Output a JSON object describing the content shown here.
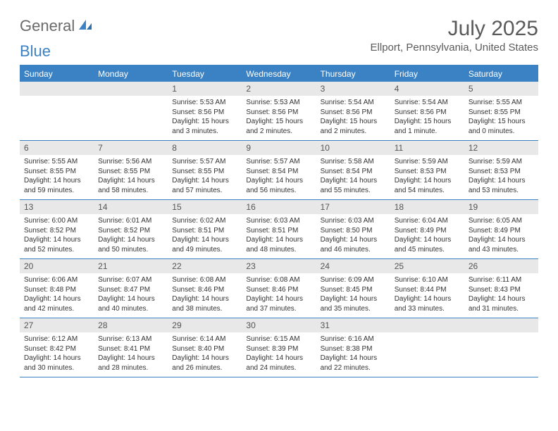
{
  "brand": {
    "part1": "General",
    "part2": "Blue"
  },
  "title": "July 2025",
  "location": "Ellport, Pennsylvania, United States",
  "colors": {
    "accent": "#3b82c4",
    "header_bg": "#3b82c4",
    "header_fg": "#ffffff",
    "daynum_bg": "#e8e8e8",
    "text": "#333333",
    "muted": "#5a5a5a"
  },
  "weekdays": [
    "Sunday",
    "Monday",
    "Tuesday",
    "Wednesday",
    "Thursday",
    "Friday",
    "Saturday"
  ],
  "weeks": [
    [
      null,
      null,
      {
        "n": "1",
        "sr": "5:53 AM",
        "ss": "8:56 PM",
        "dl": "15 hours and 3 minutes."
      },
      {
        "n": "2",
        "sr": "5:53 AM",
        "ss": "8:56 PM",
        "dl": "15 hours and 2 minutes."
      },
      {
        "n": "3",
        "sr": "5:54 AM",
        "ss": "8:56 PM",
        "dl": "15 hours and 2 minutes."
      },
      {
        "n": "4",
        "sr": "5:54 AM",
        "ss": "8:56 PM",
        "dl": "15 hours and 1 minute."
      },
      {
        "n": "5",
        "sr": "5:55 AM",
        "ss": "8:55 PM",
        "dl": "15 hours and 0 minutes."
      }
    ],
    [
      {
        "n": "6",
        "sr": "5:55 AM",
        "ss": "8:55 PM",
        "dl": "14 hours and 59 minutes."
      },
      {
        "n": "7",
        "sr": "5:56 AM",
        "ss": "8:55 PM",
        "dl": "14 hours and 58 minutes."
      },
      {
        "n": "8",
        "sr": "5:57 AM",
        "ss": "8:55 PM",
        "dl": "14 hours and 57 minutes."
      },
      {
        "n": "9",
        "sr": "5:57 AM",
        "ss": "8:54 PM",
        "dl": "14 hours and 56 minutes."
      },
      {
        "n": "10",
        "sr": "5:58 AM",
        "ss": "8:54 PM",
        "dl": "14 hours and 55 minutes."
      },
      {
        "n": "11",
        "sr": "5:59 AM",
        "ss": "8:53 PM",
        "dl": "14 hours and 54 minutes."
      },
      {
        "n": "12",
        "sr": "5:59 AM",
        "ss": "8:53 PM",
        "dl": "14 hours and 53 minutes."
      }
    ],
    [
      {
        "n": "13",
        "sr": "6:00 AM",
        "ss": "8:52 PM",
        "dl": "14 hours and 52 minutes."
      },
      {
        "n": "14",
        "sr": "6:01 AM",
        "ss": "8:52 PM",
        "dl": "14 hours and 50 minutes."
      },
      {
        "n": "15",
        "sr": "6:02 AM",
        "ss": "8:51 PM",
        "dl": "14 hours and 49 minutes."
      },
      {
        "n": "16",
        "sr": "6:03 AM",
        "ss": "8:51 PM",
        "dl": "14 hours and 48 minutes."
      },
      {
        "n": "17",
        "sr": "6:03 AM",
        "ss": "8:50 PM",
        "dl": "14 hours and 46 minutes."
      },
      {
        "n": "18",
        "sr": "6:04 AM",
        "ss": "8:49 PM",
        "dl": "14 hours and 45 minutes."
      },
      {
        "n": "19",
        "sr": "6:05 AM",
        "ss": "8:49 PM",
        "dl": "14 hours and 43 minutes."
      }
    ],
    [
      {
        "n": "20",
        "sr": "6:06 AM",
        "ss": "8:48 PM",
        "dl": "14 hours and 42 minutes."
      },
      {
        "n": "21",
        "sr": "6:07 AM",
        "ss": "8:47 PM",
        "dl": "14 hours and 40 minutes."
      },
      {
        "n": "22",
        "sr": "6:08 AM",
        "ss": "8:46 PM",
        "dl": "14 hours and 38 minutes."
      },
      {
        "n": "23",
        "sr": "6:08 AM",
        "ss": "8:46 PM",
        "dl": "14 hours and 37 minutes."
      },
      {
        "n": "24",
        "sr": "6:09 AM",
        "ss": "8:45 PM",
        "dl": "14 hours and 35 minutes."
      },
      {
        "n": "25",
        "sr": "6:10 AM",
        "ss": "8:44 PM",
        "dl": "14 hours and 33 minutes."
      },
      {
        "n": "26",
        "sr": "6:11 AM",
        "ss": "8:43 PM",
        "dl": "14 hours and 31 minutes."
      }
    ],
    [
      {
        "n": "27",
        "sr": "6:12 AM",
        "ss": "8:42 PM",
        "dl": "14 hours and 30 minutes."
      },
      {
        "n": "28",
        "sr": "6:13 AM",
        "ss": "8:41 PM",
        "dl": "14 hours and 28 minutes."
      },
      {
        "n": "29",
        "sr": "6:14 AM",
        "ss": "8:40 PM",
        "dl": "14 hours and 26 minutes."
      },
      {
        "n": "30",
        "sr": "6:15 AM",
        "ss": "8:39 PM",
        "dl": "14 hours and 24 minutes."
      },
      {
        "n": "31",
        "sr": "6:16 AM",
        "ss": "8:38 PM",
        "dl": "14 hours and 22 minutes."
      },
      null,
      null
    ]
  ],
  "labels": {
    "sunrise": "Sunrise:",
    "sunset": "Sunset:",
    "daylight": "Daylight:"
  }
}
